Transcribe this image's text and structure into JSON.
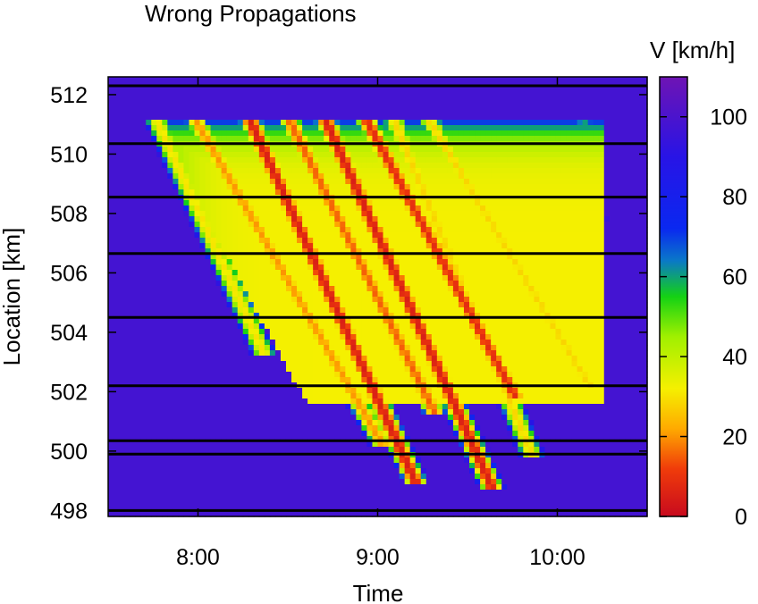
{
  "chart_data": {
    "type": "heatmap",
    "title": "Wrong Propagations",
    "xlabel": "Time",
    "ylabel": "Location [km]",
    "colorbar_label": "V [km/h]",
    "x_ticks": [
      "8:00",
      "9:00",
      "10:00"
    ],
    "x_tick_hours": [
      8,
      9,
      10
    ],
    "xlim_hours": [
      7.5,
      10.5
    ],
    "y_ticks": [
      "498",
      "500",
      "502",
      "504",
      "506",
      "508",
      "510",
      "512"
    ],
    "ylim": [
      497.8,
      512.6
    ],
    "colorbar_ticks": [
      "0",
      "20",
      "40",
      "60",
      "80",
      "100"
    ],
    "colorbar_range": [
      0,
      110
    ],
    "colormap": [
      {
        "v": 0,
        "color": "#c80a1e"
      },
      {
        "v": 12,
        "color": "#f03c0a"
      },
      {
        "v": 22,
        "color": "#ffaa00"
      },
      {
        "v": 32,
        "color": "#f5f000"
      },
      {
        "v": 45,
        "color": "#a0f000"
      },
      {
        "v": 55,
        "color": "#14d214"
      },
      {
        "v": 64,
        "color": "#0a78c8"
      },
      {
        "v": 72,
        "color": "#0a28f0"
      },
      {
        "v": 90,
        "color": "#2814e6"
      },
      {
        "v": 110,
        "color": "#6e14b4"
      }
    ],
    "free_flow_speed": 98,
    "detector_locations_km": [
      512.3,
      510.35,
      508.55,
      506.65,
      504.5,
      502.2,
      500.35,
      499.9,
      498.0
    ],
    "congestion_region": {
      "time_start_hours": 7.7,
      "time_end_hours": 10.25,
      "location_top_km": 511.1,
      "location_bottom_km": 501.6,
      "base_speed": 32
    },
    "slow_waves": [
      {
        "start_hour": 7.78,
        "start_km": 511.0,
        "end_hour": 8.35,
        "end_km": 503.5,
        "min_speed": 30
      },
      {
        "start_hour": 8.0,
        "start_km": 511.0,
        "end_hour": 9.0,
        "end_km": 500.5,
        "min_speed": 20
      },
      {
        "start_hour": 8.3,
        "start_km": 511.0,
        "end_hour": 9.2,
        "end_km": 499.1,
        "min_speed": 5
      },
      {
        "start_hour": 8.52,
        "start_km": 511.0,
        "end_hour": 9.3,
        "end_km": 501.5,
        "min_speed": 15
      },
      {
        "start_hour": 8.72,
        "start_km": 511.0,
        "end_hour": 9.62,
        "end_km": 499.0,
        "min_speed": 5
      },
      {
        "start_hour": 8.95,
        "start_km": 511.0,
        "end_hour": 9.75,
        "end_km": 502.0,
        "min_speed": 8
      },
      {
        "start_hour": 9.1,
        "start_km": 511.0,
        "end_hour": 9.85,
        "end_km": 500.0,
        "min_speed": 28
      },
      {
        "start_hour": 9.3,
        "start_km": 511.0,
        "end_hour": 10.15,
        "end_km": 502.5,
        "min_speed": 28
      },
      {
        "start_hour": 10.15,
        "start_km": 511.0,
        "end_hour": 10.2,
        "end_km": 508.0,
        "min_speed": 60
      }
    ],
    "grid": false,
    "colorbar_position": "right"
  }
}
